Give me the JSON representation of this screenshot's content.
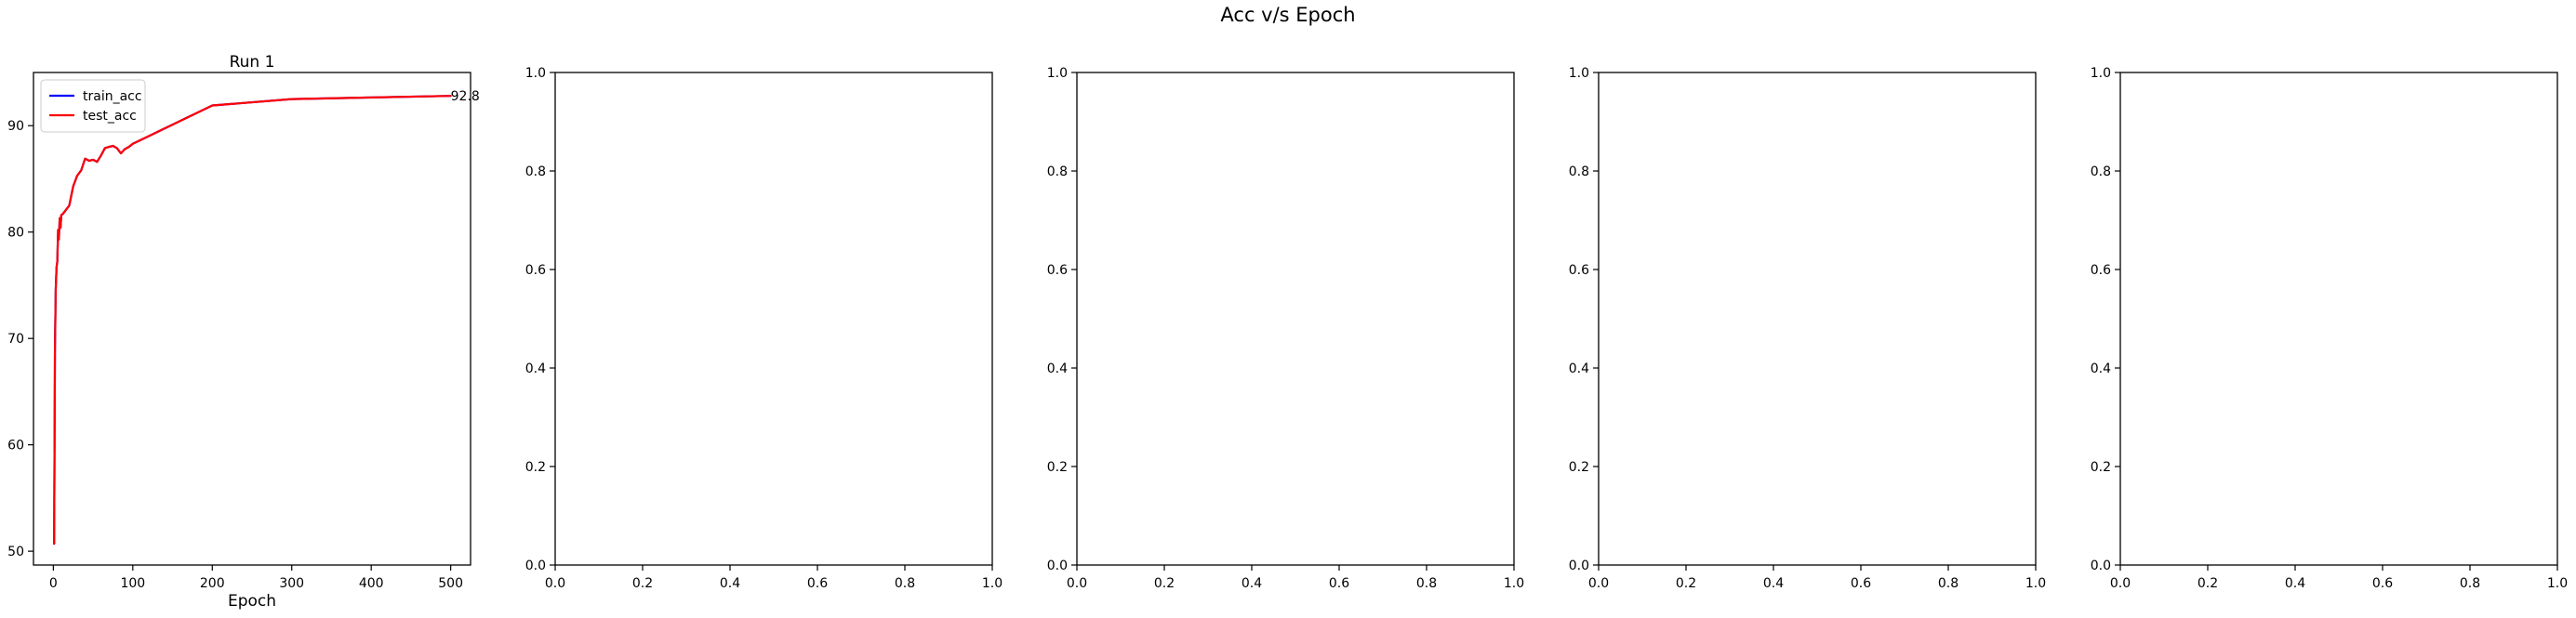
{
  "figure": {
    "suptitle": "Acc v/s Epoch"
  },
  "colors": {
    "train": "#0000ff",
    "test": "#ff0000",
    "axis": "#000000",
    "legend_border": "#cccccc"
  },
  "chart_data": [
    {
      "type": "line",
      "title": "Run 1",
      "xlabel": "Epoch",
      "ylabel": "",
      "xlim": [
        -25,
        525
      ],
      "ylim": [
        48.7,
        95.0
      ],
      "xticks": [
        0,
        100,
        200,
        300,
        400,
        500
      ],
      "yticks": [
        50,
        60,
        70,
        80,
        90
      ],
      "grid": false,
      "legend": "upper-left",
      "series": [
        {
          "name": "train_acc",
          "color": "#0000ff",
          "x": [
            1,
            2,
            3,
            4,
            5,
            6,
            7,
            8,
            9,
            10,
            12,
            15,
            20,
            25,
            30,
            35,
            40,
            45,
            50,
            55,
            60,
            65,
            70,
            75,
            80,
            85,
            90,
            95,
            100,
            200,
            300,
            500
          ],
          "y": [
            50.7,
            69.0,
            74.5,
            76.7,
            77.2,
            80.2,
            79.3,
            81.3,
            80.4,
            81.6,
            81.7,
            82.0,
            82.5,
            84.3,
            85.3,
            85.8,
            86.9,
            86.7,
            86.8,
            86.6,
            87.2,
            87.9,
            88.0,
            88.1,
            87.9,
            87.4,
            87.8,
            88.0,
            88.3,
            91.9,
            92.5,
            92.8
          ]
        },
        {
          "name": "test_acc",
          "color": "#ff0000",
          "x": [
            1,
            2,
            3,
            4,
            5,
            6,
            7,
            8,
            9,
            10,
            12,
            15,
            20,
            25,
            30,
            35,
            40,
            45,
            50,
            55,
            60,
            65,
            70,
            75,
            80,
            85,
            90,
            95,
            100,
            200,
            300,
            500
          ],
          "y": [
            50.7,
            69.0,
            74.5,
            76.7,
            77.2,
            80.2,
            79.3,
            81.3,
            80.4,
            81.6,
            81.7,
            82.0,
            82.5,
            84.3,
            85.3,
            85.8,
            86.9,
            86.7,
            86.8,
            86.6,
            87.2,
            87.9,
            88.0,
            88.1,
            87.9,
            87.4,
            87.8,
            88.0,
            88.3,
            91.9,
            92.5,
            92.8
          ]
        }
      ],
      "annotations": [
        {
          "text": "92.8",
          "x": 500,
          "y": 92.8
        }
      ]
    },
    {
      "type": "line",
      "title": "",
      "xlim": [
        0,
        1
      ],
      "ylim": [
        0,
        1
      ],
      "xticks": [
        0.0,
        0.2,
        0.4,
        0.6,
        0.8,
        1.0
      ],
      "yticks": [
        0.0,
        0.2,
        0.4,
        0.6,
        0.8,
        1.0
      ],
      "xticklabels": [
        "0.0",
        "0.2",
        "0.4",
        "0.6",
        "0.8",
        "1.0"
      ],
      "yticklabels": [
        "0.0",
        "0.2",
        "0.4",
        "0.6",
        "0.8",
        "1.0"
      ],
      "series": []
    },
    {
      "type": "line",
      "title": "",
      "xlim": [
        0,
        1
      ],
      "ylim": [
        0,
        1
      ],
      "xticks": [
        0.0,
        0.2,
        0.4,
        0.6,
        0.8,
        1.0
      ],
      "yticks": [
        0.0,
        0.2,
        0.4,
        0.6,
        0.8,
        1.0
      ],
      "xticklabels": [
        "0.0",
        "0.2",
        "0.4",
        "0.6",
        "0.8",
        "1.0"
      ],
      "yticklabels": [
        "0.0",
        "0.2",
        "0.4",
        "0.6",
        "0.8",
        "1.0"
      ],
      "series": []
    },
    {
      "type": "line",
      "title": "",
      "xlim": [
        0,
        1
      ],
      "ylim": [
        0,
        1
      ],
      "xticks": [
        0.0,
        0.2,
        0.4,
        0.6,
        0.8,
        1.0
      ],
      "yticks": [
        0.0,
        0.2,
        0.4,
        0.6,
        0.8,
        1.0
      ],
      "xticklabels": [
        "0.0",
        "0.2",
        "0.4",
        "0.6",
        "0.8",
        "1.0"
      ],
      "yticklabels": [
        "0.0",
        "0.2",
        "0.4",
        "0.6",
        "0.8",
        "1.0"
      ],
      "series": []
    },
    {
      "type": "line",
      "title": "",
      "xlim": [
        0,
        1
      ],
      "ylim": [
        0,
        1
      ],
      "xticks": [
        0.0,
        0.2,
        0.4,
        0.6,
        0.8,
        1.0
      ],
      "yticks": [
        0.0,
        0.2,
        0.4,
        0.6,
        0.8,
        1.0
      ],
      "xticklabels": [
        "0.0",
        "0.2",
        "0.4",
        "0.6",
        "0.8",
        "1.0"
      ],
      "yticklabels": [
        "0.0",
        "0.2",
        "0.4",
        "0.6",
        "0.8",
        "1.0"
      ],
      "series": []
    }
  ]
}
